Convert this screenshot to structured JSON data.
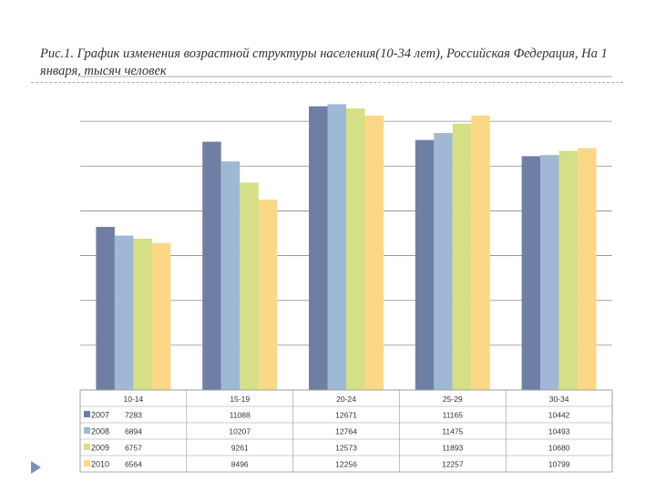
{
  "title": "Рис.1. График изменения возрастной структуры населения(10-34 лет), Российская Федерация, На 1 января, тысяч человек",
  "chart_data": {
    "type": "bar",
    "title": "Рис.1. График изменения возрастной структуры населения(10-34 лет), Российская Федерация, На 1 января, тысяч человек",
    "categories": [
      "10-14",
      "15-19",
      "20-24",
      "25-29",
      "30-34"
    ],
    "series": [
      {
        "name": "2007",
        "color": "#6f7ea4",
        "values": [
          7283,
          11088,
          12671,
          11165,
          10442
        ]
      },
      {
        "name": "2008",
        "color": "#9fb8d6",
        "values": [
          6894,
          10207,
          12764,
          11475,
          10493
        ]
      },
      {
        "name": "2009",
        "color": "#d5df85",
        "values": [
          6757,
          9261,
          12573,
          11893,
          10680
        ]
      },
      {
        "name": "2010",
        "color": "#fad885",
        "values": [
          6564,
          8496,
          12256,
          12257,
          10799
        ]
      }
    ],
    "ylim": [
      0,
      14000
    ],
    "ytick_step": 2000,
    "xlabel": "",
    "ylabel": "",
    "grid": true,
    "legend": "data-table-below"
  }
}
